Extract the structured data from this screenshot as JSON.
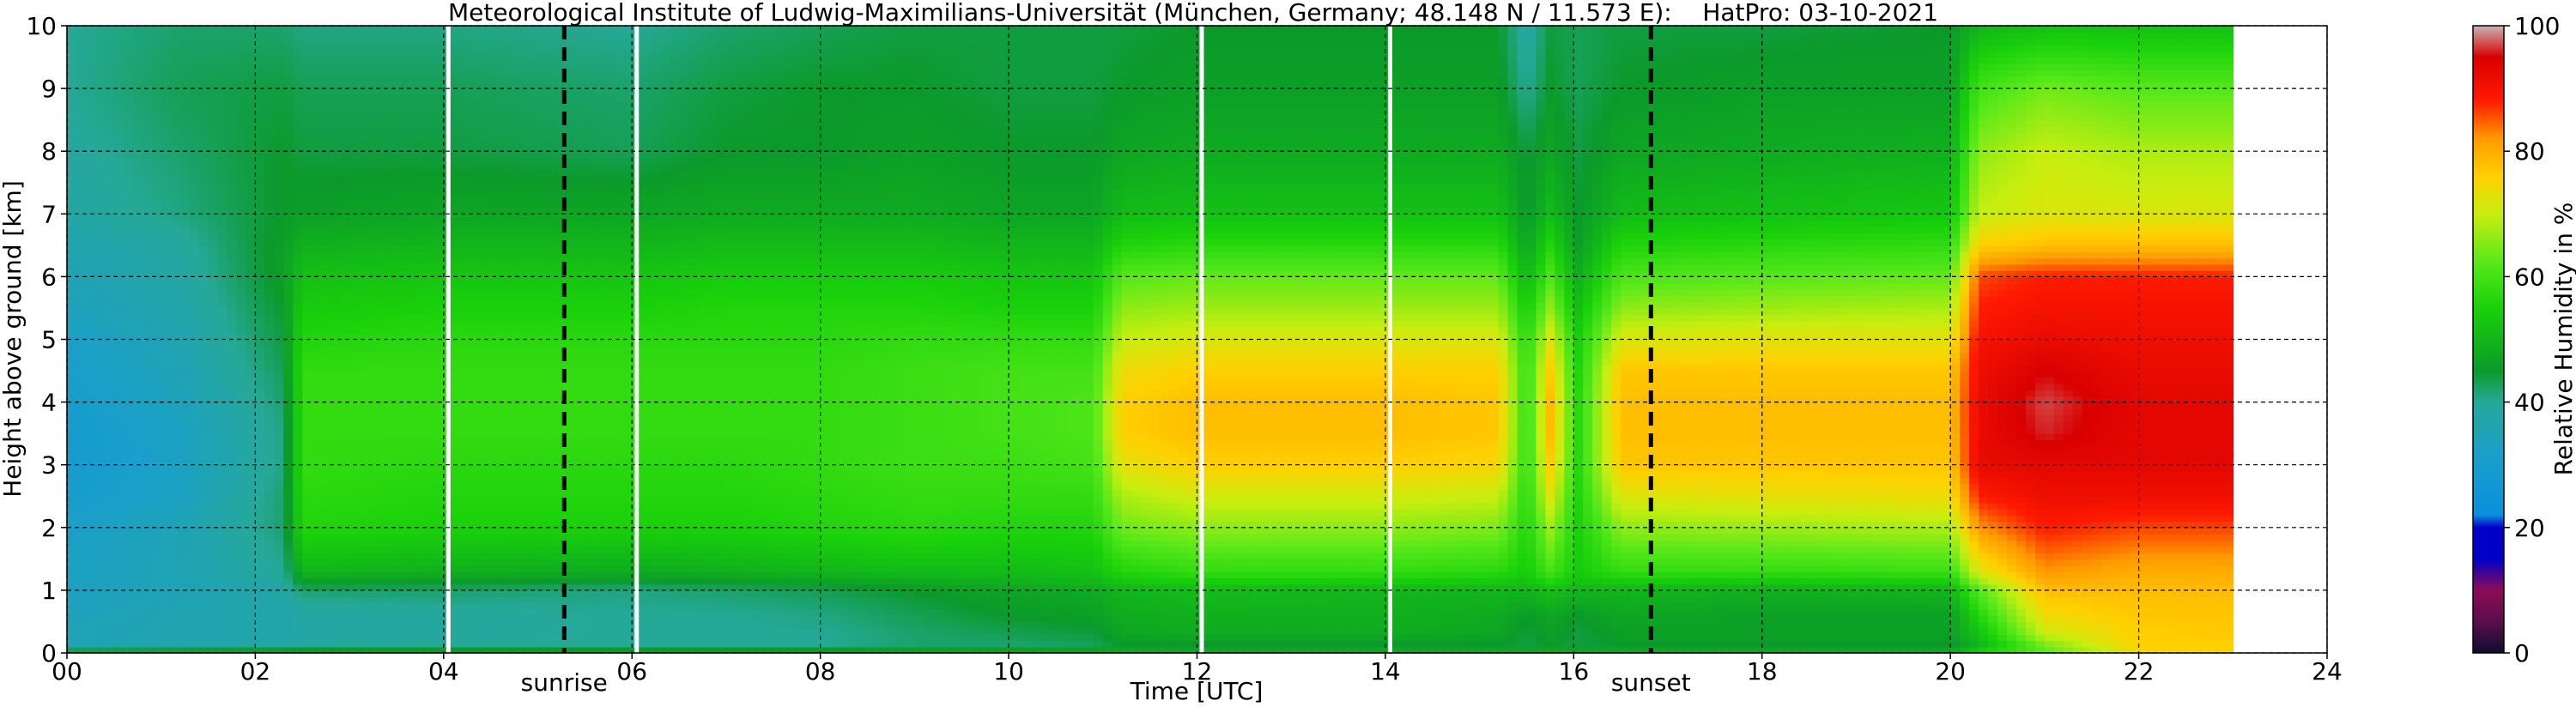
{
  "chart_data": {
    "type": "heatmap",
    "title": "Meteorological Institute of Ludwig-Maximilians-Universität (München, Germany; 48.148 N / 11.573 E):    HatPro: 03-10-2021",
    "xlabel": "Time [UTC]",
    "ylabel": "Height above ground [km]",
    "xlim": [
      0,
      24
    ],
    "ylim": [
      0,
      10
    ],
    "x_ticks": [
      "00",
      "02",
      "04",
      "06",
      "08",
      "10",
      "12",
      "14",
      "16",
      "18",
      "20",
      "22",
      "24"
    ],
    "y_ticks": [
      "0",
      "1",
      "2",
      "3",
      "4",
      "5",
      "6",
      "7",
      "8",
      "9",
      "10"
    ],
    "grid": true,
    "data_end_hour": 23,
    "colorbar": {
      "label": "Relative Humidity in %",
      "range": [
        0,
        100
      ],
      "ticks": [
        "0",
        "20",
        "40",
        "60",
        "80",
        "100"
      ],
      "stops": [
        {
          "value": 0,
          "color": "#0d0d2e"
        },
        {
          "value": 5,
          "color": "#5a0f4a"
        },
        {
          "value": 10,
          "color": "#8a0d55"
        },
        {
          "value": 15,
          "color": "#0000c8"
        },
        {
          "value": 20,
          "color": "#0000c8"
        },
        {
          "value": 22,
          "color": "#0a90dc"
        },
        {
          "value": 32,
          "color": "#1aa0c8"
        },
        {
          "value": 40,
          "color": "#26a898"
        },
        {
          "value": 45,
          "color": "#0b9a2a"
        },
        {
          "value": 55,
          "color": "#19d10a"
        },
        {
          "value": 62,
          "color": "#55e81a"
        },
        {
          "value": 70,
          "color": "#c8ee10"
        },
        {
          "value": 76,
          "color": "#ffd000"
        },
        {
          "value": 82,
          "color": "#ff9a00"
        },
        {
          "value": 88,
          "color": "#ff1a00"
        },
        {
          "value": 95,
          "color": "#d80000"
        },
        {
          "value": 100,
          "color": "#c8b4b4"
        }
      ]
    },
    "vertical_gaps_hours": [
      4.05,
      6.05,
      12.05,
      14.05
    ],
    "events": [
      {
        "label": "sunrise",
        "hour": 5.28
      },
      {
        "label": "sunset",
        "hour": 16.82
      }
    ],
    "time_nodes_hours": [
      0,
      1.2,
      2.3,
      2.5,
      4,
      6,
      7,
      8,
      9,
      10,
      10.9,
      11.2,
      12,
      14,
      15.2,
      15.5,
      15.75,
      16.05,
      16.5,
      18,
      20,
      20.3,
      21,
      22,
      23
    ],
    "height_nodes_km": [
      0,
      0.15,
      0.3,
      0.6,
      1,
      1.3,
      2,
      2.5,
      3,
      3.5,
      4,
      4.5,
      5,
      5.5,
      6,
      6.5,
      7,
      8,
      9,
      10
    ],
    "humidity_percent": [
      [
        47,
        35,
        35,
        34,
        33,
        33,
        32,
        30,
        29,
        29,
        30,
        31,
        32,
        34,
        35,
        36,
        38,
        39,
        40,
        40
      ],
      [
        48,
        36,
        36,
        36,
        35,
        35,
        35,
        33,
        33,
        33,
        34,
        35,
        36,
        37,
        38,
        39,
        41,
        42,
        43,
        42
      ],
      [
        48,
        38,
        37,
        37,
        38,
        40,
        42,
        42,
        41,
        41,
        42,
        43,
        44,
        45,
        46,
        46,
        45,
        45,
        44,
        42
      ],
      [
        48,
        39,
        38,
        38,
        42,
        50,
        56,
        57,
        58,
        58,
        58,
        58,
        56,
        54,
        52,
        49,
        46,
        44,
        43,
        41
      ],
      [
        48,
        40,
        39,
        39,
        42,
        49,
        55,
        56,
        57,
        58,
        58,
        58,
        57,
        55,
        53,
        50,
        47,
        44,
        43,
        41
      ],
      [
        48,
        40,
        40,
        40,
        41,
        48,
        55,
        56,
        57,
        58,
        58,
        58,
        57,
        55,
        53,
        50,
        47,
        43,
        42,
        40
      ],
      [
        48,
        40,
        40,
        40,
        42,
        49,
        55,
        56,
        57,
        58,
        58,
        58,
        57,
        56,
        54,
        51,
        48,
        45,
        44,
        42
      ],
      [
        48,
        40,
        40,
        41,
        43,
        50,
        56,
        57,
        58,
        58,
        58,
        58,
        57,
        56,
        54,
        51,
        48,
        45,
        45,
        43
      ],
      [
        48,
        42,
        42,
        43,
        45,
        51,
        57,
        58,
        59,
        59,
        59,
        59,
        58,
        56,
        54,
        51,
        48,
        46,
        45,
        44
      ],
      [
        48,
        42,
        43,
        45,
        47,
        51,
        56,
        58,
        59,
        60,
        60,
        60,
        58,
        55,
        53,
        50,
        47,
        45,
        44,
        44
      ],
      [
        48,
        43,
        44,
        46,
        48,
        52,
        56,
        58,
        60,
        61,
        61,
        60,
        58,
        55,
        53,
        50,
        47,
        45,
        44,
        44
      ],
      [
        48,
        45,
        47,
        48,
        50,
        56,
        64,
        68,
        73,
        76,
        76,
        74,
        70,
        66,
        62,
        56,
        51,
        47,
        45,
        44
      ],
      [
        48,
        45,
        48,
        49,
        51,
        58,
        66,
        71,
        76,
        78,
        78,
        76,
        72,
        67,
        63,
        57,
        52,
        48,
        46,
        45
      ],
      [
        48,
        45,
        48,
        49,
        50,
        58,
        66,
        71,
        76,
        78,
        78,
        76,
        72,
        67,
        63,
        57,
        52,
        48,
        46,
        45
      ],
      [
        48,
        45,
        47,
        48,
        50,
        57,
        65,
        70,
        75,
        77,
        77,
        76,
        72,
        67,
        63,
        57,
        52,
        48,
        46,
        45
      ],
      [
        48,
        44,
        44,
        45,
        50,
        54,
        56,
        57,
        58,
        58,
        58,
        58,
        57,
        54,
        50,
        47,
        45,
        44,
        40,
        38
      ],
      [
        48,
        45,
        46,
        47,
        52,
        60,
        67,
        72,
        76,
        78,
        78,
        76,
        72,
        66,
        61,
        56,
        51,
        47,
        45,
        44
      ],
      [
        48,
        44,
        44,
        45,
        50,
        54,
        55,
        56,
        57,
        57,
        57,
        56,
        55,
        52,
        49,
        46,
        45,
        44,
        43,
        43
      ],
      [
        48,
        45,
        46,
        47,
        50,
        58,
        66,
        72,
        77,
        78,
        78,
        77,
        72,
        66,
        61,
        56,
        51,
        47,
        45,
        44
      ],
      [
        48,
        45,
        46,
        46,
        49,
        58,
        67,
        73,
        77,
        78,
        78,
        77,
        73,
        67,
        62,
        57,
        52,
        48,
        46,
        44
      ],
      [
        48,
        45,
        46,
        46,
        50,
        59,
        68,
        74,
        77,
        78,
        78,
        77,
        73,
        68,
        63,
        58,
        53,
        49,
        46,
        45
      ],
      [
        55,
        50,
        52,
        56,
        62,
        72,
        82,
        88,
        92,
        92,
        92,
        91,
        90,
        88,
        86,
        76,
        70,
        66,
        60,
        50
      ],
      [
        62,
        65,
        70,
        74,
        78,
        82,
        88,
        91,
        93,
        96,
        97,
        95,
        92,
        90,
        88,
        78,
        72,
        70,
        64,
        52
      ],
      [
        74,
        76,
        76,
        77,
        78,
        80,
        86,
        91,
        93,
        93,
        93,
        92,
        91,
        90,
        88,
        78,
        72,
        68,
        62,
        52
      ],
      [
        76,
        76,
        77,
        77,
        78,
        80,
        86,
        91,
        93,
        93,
        93,
        92,
        91,
        90,
        88,
        78,
        72,
        68,
        62,
        52
      ]
    ]
  }
}
